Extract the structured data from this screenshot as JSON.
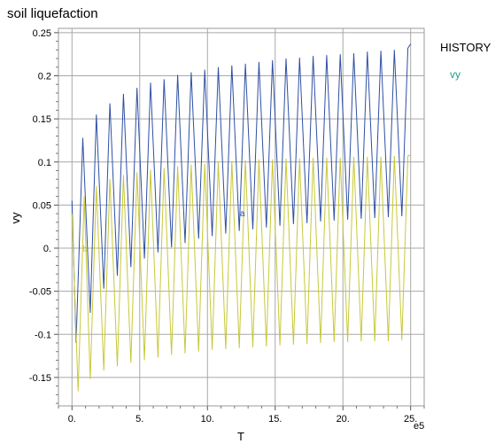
{
  "chart_data": {
    "type": "line",
    "title": "soil liquefaction",
    "xlabel": "T",
    "ylabel": "vy",
    "x_multiplier_label": "e5",
    "xlim": [
      -1.0,
      26.0
    ],
    "ylim": [
      -0.183,
      0.255
    ],
    "xticks": [
      0,
      5,
      10,
      15,
      20,
      25
    ],
    "xtick_labels": [
      "0.",
      "5.",
      "10.",
      "15.",
      "20.",
      "25."
    ],
    "yticks": [
      0.25,
      0.2,
      0.15,
      0.1,
      0.05,
      0,
      -0.05,
      -0.1,
      -0.15
    ],
    "ytick_labels": [
      "0.25",
      "0.2",
      "0.15",
      "0.1",
      "0.05",
      "0.",
      "-0.05",
      "-0.1",
      "-0.15"
    ],
    "grid": true,
    "legend": {
      "title": "HISTORY",
      "position": "right",
      "entries": [
        "vy"
      ],
      "entry_color": "#1aa08c"
    },
    "annotations": [
      {
        "text": "a",
        "x": 12.4,
        "y": 0.037,
        "color": "#2e4fa3"
      },
      {
        "text": "b",
        "x": 0.8,
        "y": -0.004,
        "color": "#c8c83a"
      }
    ],
    "series": [
      {
        "color": "#2e4fa3",
        "x": [
          0.0,
          0.3,
          0.8,
          1.35,
          1.8,
          2.35,
          2.8,
          3.35,
          3.8,
          4.35,
          4.8,
          5.35,
          5.8,
          6.35,
          6.8,
          7.35,
          7.8,
          8.35,
          8.8,
          9.35,
          9.8,
          10.35,
          10.8,
          11.35,
          11.8,
          12.35,
          12.8,
          13.35,
          13.8,
          14.35,
          14.8,
          15.35,
          15.8,
          16.35,
          16.8,
          17.35,
          17.8,
          18.35,
          18.8,
          19.35,
          19.8,
          20.35,
          20.8,
          21.35,
          21.8,
          22.35,
          22.8,
          23.35,
          23.8,
          24.35,
          24.8,
          25.0
        ],
        "y": [
          0.055,
          -0.11,
          0.128,
          -0.075,
          0.155,
          -0.047,
          0.168,
          -0.032,
          0.179,
          -0.022,
          0.186,
          -0.012,
          0.192,
          -0.005,
          0.196,
          0.001,
          0.201,
          0.006,
          0.204,
          0.011,
          0.207,
          0.014,
          0.21,
          0.017,
          0.212,
          0.02,
          0.214,
          0.022,
          0.216,
          0.024,
          0.218,
          0.026,
          0.22,
          0.028,
          0.221,
          0.029,
          0.223,
          0.031,
          0.224,
          0.032,
          0.225,
          0.033,
          0.226,
          0.034,
          0.228,
          0.035,
          0.229,
          0.036,
          0.23,
          0.037,
          0.232,
          0.237
        ]
      },
      {
        "color": "#c8c83a",
        "x": [
          0.0,
          0.45,
          0.9,
          1.35,
          1.8,
          2.35,
          2.8,
          3.35,
          3.8,
          4.35,
          4.8,
          5.35,
          5.8,
          6.35,
          6.8,
          7.35,
          7.8,
          8.35,
          8.8,
          9.35,
          9.8,
          10.35,
          10.8,
          11.35,
          11.8,
          12.35,
          12.8,
          13.35,
          13.8,
          14.35,
          14.8,
          15.35,
          15.8,
          16.35,
          16.8,
          17.35,
          17.8,
          18.35,
          18.8,
          19.35,
          19.8,
          20.35,
          20.8,
          21.35,
          21.8,
          22.35,
          22.8,
          23.35,
          23.8,
          24.35,
          24.8,
          25.0
        ],
        "y": [
          0.04,
          -0.166,
          0.06,
          -0.152,
          0.072,
          -0.142,
          0.08,
          -0.137,
          0.085,
          -0.133,
          0.088,
          -0.13,
          0.091,
          -0.127,
          0.093,
          -0.124,
          0.095,
          -0.122,
          0.097,
          -0.12,
          0.098,
          -0.118,
          0.1,
          -0.117,
          0.101,
          -0.116,
          0.102,
          -0.115,
          0.103,
          -0.114,
          0.103,
          -0.113,
          0.104,
          -0.112,
          0.104,
          -0.111,
          0.105,
          -0.11,
          0.105,
          -0.109,
          0.105,
          -0.109,
          0.106,
          -0.108,
          0.106,
          -0.108,
          0.106,
          -0.108,
          0.107,
          -0.107,
          0.107,
          0.108
        ]
      }
    ]
  }
}
